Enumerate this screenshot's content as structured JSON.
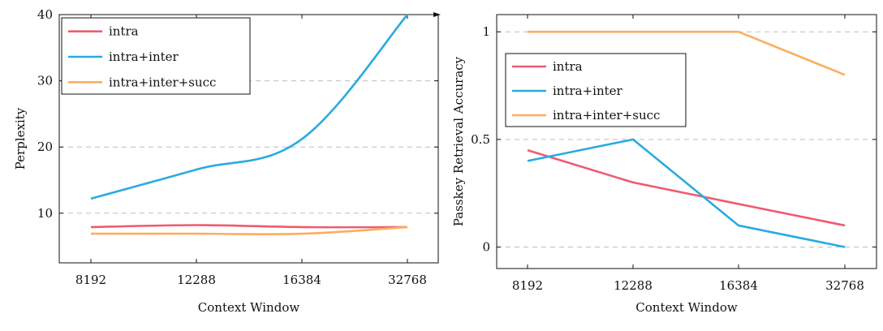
{
  "chart_data": [
    {
      "type": "line",
      "xlabel": "Context Window",
      "ylabel": "Perplexity",
      "categories": [
        "8192",
        "12288",
        "16384",
        "32768"
      ],
      "yticks": [
        10,
        20,
        30,
        40
      ],
      "ylim": [
        2.5,
        40
      ],
      "grid": "horizontal dashed",
      "legend_position": "top-left",
      "series": [
        {
          "name": "intra",
          "color": "#ef5b6e",
          "values": [
            7.9,
            8.2,
            7.9,
            7.9
          ]
        },
        {
          "name": "intra+inter",
          "color": "#29abe2",
          "values": [
            12.2,
            16.6,
            21.2,
            40.0
          ]
        },
        {
          "name": "intra+inter+succ",
          "color": "#fbae5f",
          "values": [
            6.9,
            6.9,
            6.9,
            7.9
          ]
        }
      ]
    },
    {
      "type": "line",
      "xlabel": "Context Window",
      "ylabel": "Passkey Retrieval Accuracy",
      "categories": [
        "8192",
        "12288",
        "16384",
        "32768"
      ],
      "yticks": [
        0,
        0.5,
        1
      ],
      "ytick_labels": [
        "0",
        "0.5",
        "1"
      ],
      "ylim": [
        -0.1,
        1.08
      ],
      "grid": "horizontal dashed",
      "legend_position": "top-left",
      "series": [
        {
          "name": "intra",
          "color": "#ef5b6e",
          "values": [
            0.45,
            0.3,
            0.2,
            0.1
          ]
        },
        {
          "name": "intra+inter",
          "color": "#29abe2",
          "values": [
            0.4,
            0.5,
            0.1,
            0.0
          ]
        },
        {
          "name": "intra+inter+succ",
          "color": "#fbae5f",
          "values": [
            1.0,
            1.0,
            1.0,
            0.8
          ]
        }
      ]
    }
  ]
}
